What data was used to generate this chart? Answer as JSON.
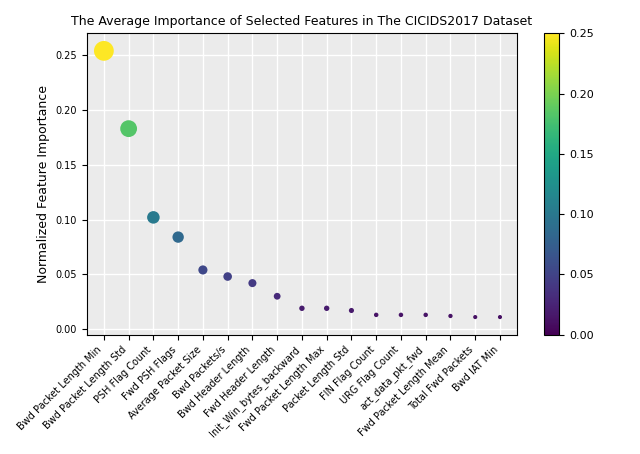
{
  "title": "The Average Importance of Selected Features in The CICIDS2017 Dataset",
  "ylabel": "Normalized Feature Importance",
  "features": [
    "Bwd Packet Length Min",
    "Bwd Packet Length Std",
    "PSH Flag Count",
    "Fwd PSH Flags",
    "Average Packet Size",
    "Bwd Packets/s",
    "Bwd Header Length",
    "Fwd Header Length",
    "Init_Win_bytes_backward",
    "Fwd Packet Length Max",
    "Packet Length Std",
    "FIN Flag Count",
    "URG Flag Count",
    "act_data_pkt_fwd",
    "Fwd Packet Length Mean",
    "Total Fwd Packets",
    "Bwd IAT Min"
  ],
  "values": [
    0.254,
    0.183,
    0.102,
    0.084,
    0.054,
    0.048,
    0.042,
    0.03,
    0.019,
    0.019,
    0.017,
    0.013,
    0.013,
    0.013,
    0.012,
    0.011,
    0.011
  ],
  "cmap": "viridis",
  "vmin": 0.0,
  "vmax": 0.25,
  "ylim": [
    -0.005,
    0.27
  ],
  "size_scale": 800,
  "background_color": "#ebebeb",
  "grid_color": "white",
  "title_fontsize": 9,
  "label_fontsize": 9,
  "tick_fontsize": 7,
  "colorbar_tick_fontsize": 8
}
